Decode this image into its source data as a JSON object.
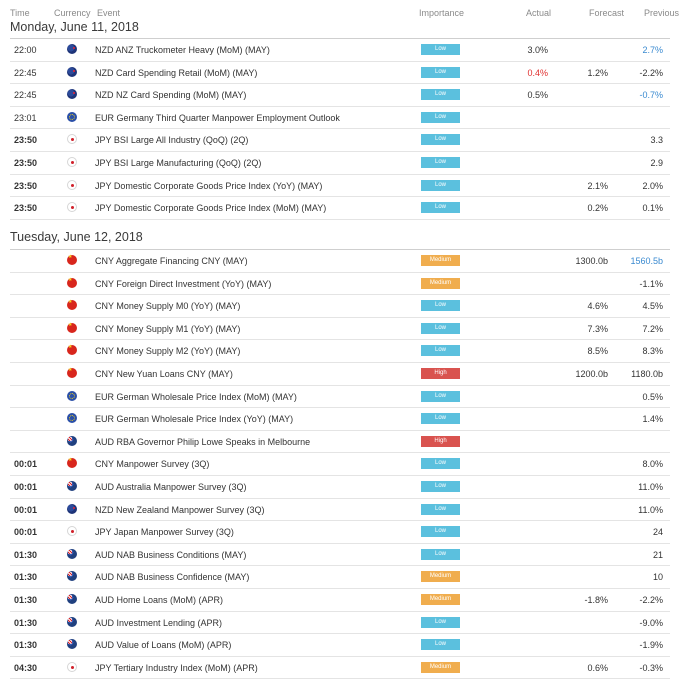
{
  "header": {
    "time": "Time",
    "currency": "Currency",
    "event": "Event",
    "importance": "Importance",
    "actual": "Actual",
    "forecast": "Forecast",
    "previous": "Previous"
  },
  "sections": [
    {
      "title": "Monday, June 11, 2018",
      "rows": [
        {
          "time": "22:00",
          "bold": false,
          "flag": "nz",
          "event": "NZD ANZ Truckometer Heavy (MoM) (MAY)",
          "importance": "Low",
          "level": "low",
          "actual": "3.0%",
          "actual_color": "",
          "forecast": "",
          "previous": "2.7%",
          "previous_color": "blue"
        },
        {
          "time": "22:45",
          "bold": false,
          "flag": "nz",
          "event": "NZD Card Spending Retail (MoM) (MAY)",
          "importance": "Low",
          "level": "low",
          "actual": "0.4%",
          "actual_color": "red",
          "forecast": "1.2%",
          "previous": "-2.2%",
          "previous_color": ""
        },
        {
          "time": "22:45",
          "bold": false,
          "flag": "nz",
          "event": "NZD NZ Card Spending (MoM) (MAY)",
          "importance": "Low",
          "level": "low",
          "actual": "0.5%",
          "actual_color": "",
          "forecast": "",
          "previous": "-0.7%",
          "previous_color": "blue"
        },
        {
          "time": "23:01",
          "bold": false,
          "flag": "eu",
          "event": "EUR Germany Third Quarter Manpower Employment Outlook",
          "importance": "Low",
          "level": "low",
          "actual": "",
          "actual_color": "",
          "forecast": "",
          "previous": "",
          "previous_color": ""
        },
        {
          "time": "23:50",
          "bold": true,
          "flag": "jp",
          "event": "JPY BSI Large All Industry (QoQ) (2Q)",
          "importance": "Low",
          "level": "low",
          "actual": "",
          "actual_color": "",
          "forecast": "",
          "previous": "3.3",
          "previous_color": ""
        },
        {
          "time": "23:50",
          "bold": true,
          "flag": "jp",
          "event": "JPY BSI Large Manufacturing (QoQ) (2Q)",
          "importance": "Low",
          "level": "low",
          "actual": "",
          "actual_color": "",
          "forecast": "",
          "previous": "2.9",
          "previous_color": ""
        },
        {
          "time": "23:50",
          "bold": true,
          "flag": "jp",
          "event": "JPY Domestic Corporate Goods Price Index (YoY) (MAY)",
          "importance": "Low",
          "level": "low",
          "actual": "",
          "actual_color": "",
          "forecast": "2.1%",
          "previous": "2.0%",
          "previous_color": ""
        },
        {
          "time": "23:50",
          "bold": true,
          "flag": "jp",
          "event": "JPY Domestic Corporate Goods Price Index (MoM) (MAY)",
          "importance": "Low",
          "level": "low",
          "actual": "",
          "actual_color": "",
          "forecast": "0.2%",
          "previous": "0.1%",
          "previous_color": ""
        }
      ]
    },
    {
      "title": "Tuesday, June 12, 2018",
      "rows": [
        {
          "time": "",
          "bold": false,
          "flag": "cn",
          "event": "CNY Aggregate Financing CNY (MAY)",
          "importance": "Medium",
          "level": "medium",
          "actual": "",
          "actual_color": "",
          "forecast": "1300.0b",
          "previous": "1560.5b",
          "previous_color": "blue"
        },
        {
          "time": "",
          "bold": false,
          "flag": "cn",
          "event": "CNY Foreign Direct Investment (YoY) (MAY)",
          "importance": "Medium",
          "level": "medium",
          "actual": "",
          "actual_color": "",
          "forecast": "",
          "previous": "-1.1%",
          "previous_color": ""
        },
        {
          "time": "",
          "bold": false,
          "flag": "cn",
          "event": "CNY Money Supply M0 (YoY) (MAY)",
          "importance": "Low",
          "level": "low",
          "actual": "",
          "actual_color": "",
          "forecast": "4.6%",
          "previous": "4.5%",
          "previous_color": ""
        },
        {
          "time": "",
          "bold": false,
          "flag": "cn",
          "event": "CNY Money Supply M1 (YoY) (MAY)",
          "importance": "Low",
          "level": "low",
          "actual": "",
          "actual_color": "",
          "forecast": "7.3%",
          "previous": "7.2%",
          "previous_color": ""
        },
        {
          "time": "",
          "bold": false,
          "flag": "cn",
          "event": "CNY Money Supply M2 (YoY) (MAY)",
          "importance": "Low",
          "level": "low",
          "actual": "",
          "actual_color": "",
          "forecast": "8.5%",
          "previous": "8.3%",
          "previous_color": ""
        },
        {
          "time": "",
          "bold": false,
          "flag": "cn",
          "event": "CNY New Yuan Loans CNY (MAY)",
          "importance": "High",
          "level": "high",
          "actual": "",
          "actual_color": "",
          "forecast": "1200.0b",
          "previous": "1180.0b",
          "previous_color": ""
        },
        {
          "time": "",
          "bold": false,
          "flag": "eu",
          "event": "EUR German Wholesale Price Index (MoM) (MAY)",
          "importance": "Low",
          "level": "low",
          "actual": "",
          "actual_color": "",
          "forecast": "",
          "previous": "0.5%",
          "previous_color": ""
        },
        {
          "time": "",
          "bold": false,
          "flag": "eu",
          "event": "EUR German Wholesale Price Index (YoY) (MAY)",
          "importance": "Low",
          "level": "low",
          "actual": "",
          "actual_color": "",
          "forecast": "",
          "previous": "1.4%",
          "previous_color": ""
        },
        {
          "time": "",
          "bold": false,
          "flag": "au",
          "event": "AUD RBA Governor Philip Lowe Speaks in Melbourne",
          "importance": "High",
          "level": "high",
          "actual": "",
          "actual_color": "",
          "forecast": "",
          "previous": "",
          "previous_color": ""
        },
        {
          "time": "00:01",
          "bold": true,
          "flag": "cn",
          "event": "CNY Manpower Survey (3Q)",
          "importance": "Low",
          "level": "low",
          "actual": "",
          "actual_color": "",
          "forecast": "",
          "previous": "8.0%",
          "previous_color": ""
        },
        {
          "time": "00:01",
          "bold": true,
          "flag": "au",
          "event": "AUD Australia Manpower Survey (3Q)",
          "importance": "Low",
          "level": "low",
          "actual": "",
          "actual_color": "",
          "forecast": "",
          "previous": "11.0%",
          "previous_color": ""
        },
        {
          "time": "00:01",
          "bold": true,
          "flag": "nz",
          "event": "NZD New Zealand Manpower Survey (3Q)",
          "importance": "Low",
          "level": "low",
          "actual": "",
          "actual_color": "",
          "forecast": "",
          "previous": "11.0%",
          "previous_color": ""
        },
        {
          "time": "00:01",
          "bold": true,
          "flag": "jp",
          "event": "JPY Japan Manpower Survey (3Q)",
          "importance": "Low",
          "level": "low",
          "actual": "",
          "actual_color": "",
          "forecast": "",
          "previous": "24",
          "previous_color": ""
        },
        {
          "time": "01:30",
          "bold": true,
          "flag": "au",
          "event": "AUD NAB Business Conditions (MAY)",
          "importance": "Low",
          "level": "low",
          "actual": "",
          "actual_color": "",
          "forecast": "",
          "previous": "21",
          "previous_color": ""
        },
        {
          "time": "01:30",
          "bold": true,
          "flag": "au",
          "event": "AUD NAB Business Confidence (MAY)",
          "importance": "Medium",
          "level": "medium",
          "actual": "",
          "actual_color": "",
          "forecast": "",
          "previous": "10",
          "previous_color": ""
        },
        {
          "time": "01:30",
          "bold": true,
          "flag": "au",
          "event": "AUD Home Loans (MoM) (APR)",
          "importance": "Medium",
          "level": "medium",
          "actual": "",
          "actual_color": "",
          "forecast": "-1.8%",
          "previous": "-2.2%",
          "previous_color": ""
        },
        {
          "time": "01:30",
          "bold": true,
          "flag": "au",
          "event": "AUD Investment Lending (APR)",
          "importance": "Low",
          "level": "low",
          "actual": "",
          "actual_color": "",
          "forecast": "",
          "previous": "-9.0%",
          "previous_color": ""
        },
        {
          "time": "01:30",
          "bold": true,
          "flag": "au",
          "event": "AUD Value of Loans (MoM) (APR)",
          "importance": "Low",
          "level": "low",
          "actual": "",
          "actual_color": "",
          "forecast": "",
          "previous": "-1.9%",
          "previous_color": ""
        },
        {
          "time": "04:30",
          "bold": true,
          "flag": "jp",
          "event": "JPY Tertiary Industry Index (MoM) (APR)",
          "importance": "Medium",
          "level": "medium",
          "actual": "",
          "actual_color": "",
          "forecast": "0.6%",
          "previous": "-0.3%",
          "previous_color": ""
        }
      ]
    }
  ]
}
